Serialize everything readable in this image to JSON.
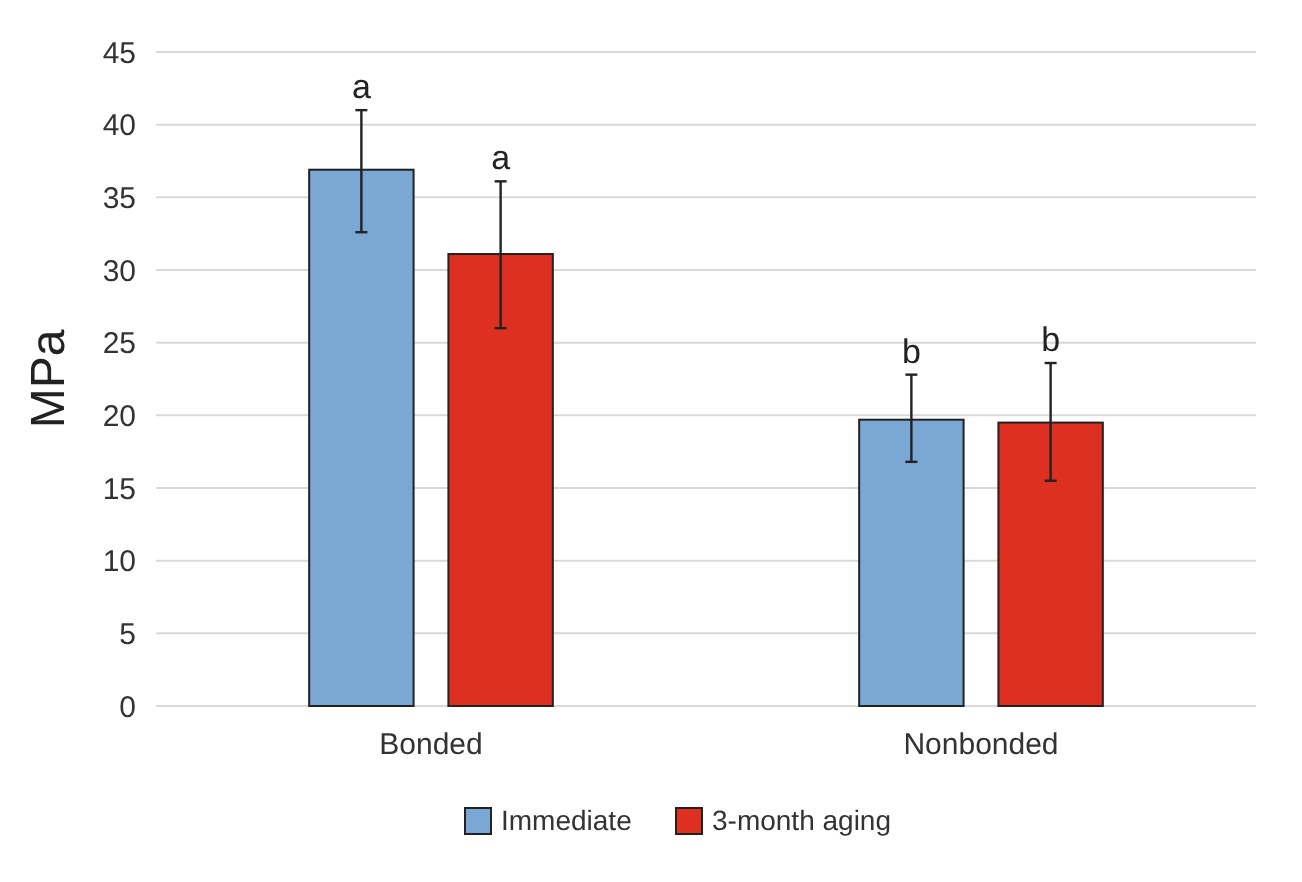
{
  "chart_data": {
    "type": "bar",
    "ylabel": "MPa",
    "categories": [
      "Bonded",
      "Nonbonded"
    ],
    "series": [
      {
        "name": "Immediate",
        "color": "#7ba7d4",
        "values": [
          36.9,
          19.7
        ],
        "errors": [
          [
            32.6,
            41.0
          ],
          [
            16.8,
            22.8
          ]
        ]
      },
      {
        "name": "3-month aging",
        "color": "#dd3020",
        "values": [
          31.1,
          19.5
        ],
        "errors": [
          [
            26.0,
            36.1
          ],
          [
            15.5,
            23.6
          ]
        ]
      }
    ],
    "annotations": [
      "a",
      "a",
      "b",
      "b"
    ],
    "ylim": [
      0,
      45
    ],
    "yticks": [
      0,
      5,
      10,
      15,
      20,
      25,
      30,
      35,
      40,
      45
    ],
    "grid": "y",
    "legend": "bottom"
  }
}
